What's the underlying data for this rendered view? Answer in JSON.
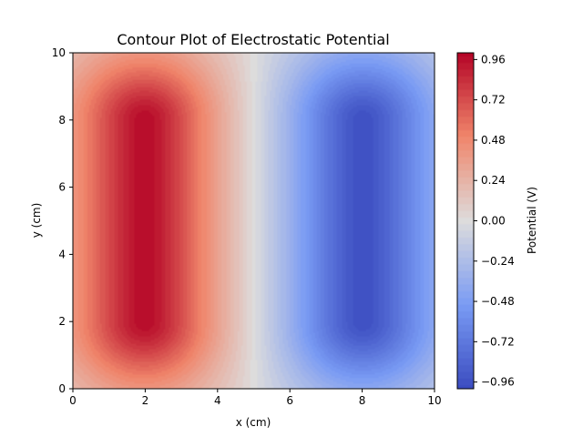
{
  "chart_data": {
    "type": "heatmap",
    "subtype": "filled-contour",
    "title": "Contour Plot of Electrostatic Potential",
    "xlabel": "x (cm)",
    "ylabel": "y (cm)",
    "xlim": [
      0,
      10
    ],
    "ylim": [
      0,
      10
    ],
    "xticks": [
      "0",
      "2",
      "4",
      "6",
      "8",
      "10"
    ],
    "yticks": [
      "0",
      "2",
      "4",
      "6",
      "8",
      "10"
    ],
    "colormap": "coolwarm",
    "colormap_low": "#3b4cc0",
    "colormap_mid": "#dddcdc",
    "colormap_high": "#b40426",
    "grid": false,
    "colorbar": {
      "label": "Potential (V)",
      "range": [
        -1.0,
        1.0
      ],
      "ticks": [
        "0.96",
        "0.72",
        "0.48",
        "0.24",
        "0.00",
        "−0.24",
        "−0.48",
        "−0.72",
        "−0.96"
      ],
      "tick_values": [
        0.96,
        0.72,
        0.48,
        0.24,
        0.0,
        -0.24,
        -0.48,
        -0.72,
        -0.96
      ]
    },
    "sources": [
      {
        "x": 2,
        "y_min": 2,
        "y_max": 8,
        "peak": 0.98,
        "sign": "positive",
        "color": "#b40426"
      },
      {
        "x": 8,
        "y_min": 2,
        "y_max": 8,
        "peak": -0.98,
        "sign": "negative",
        "color": "#3b4cc0"
      }
    ]
  }
}
